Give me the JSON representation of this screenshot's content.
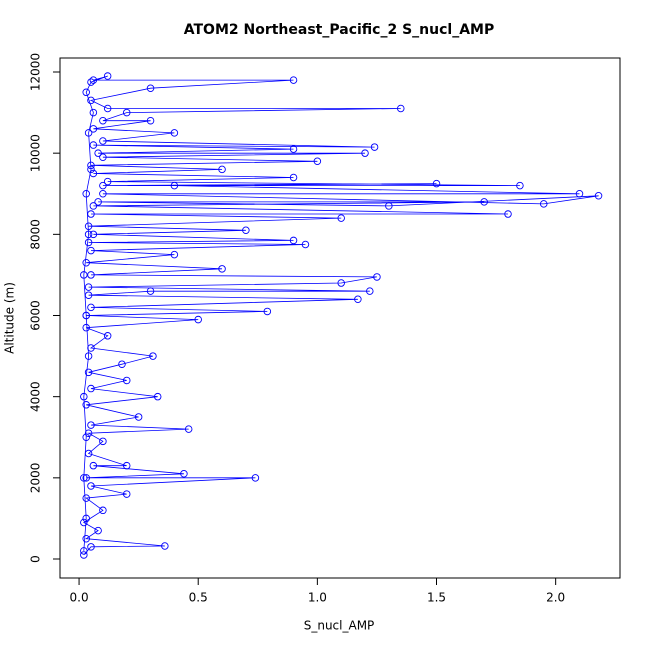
{
  "chart_data": {
    "type": "line",
    "markers": true,
    "title": "ATOM2 Northeast_Pacific_2 S_nucl_AMP",
    "x_label": "S_nucl_AMP",
    "y_label": "Altitude (m)",
    "color": "#0000ff",
    "xlim": [
      -0.08,
      2.27
    ],
    "ylim": [
      -468,
      12345
    ],
    "xticks": [
      {
        "value": 0,
        "label": "0.0"
      },
      0.5,
      {
        "value": 1,
        "label": "1.0"
      },
      1.5,
      {
        "value": 2,
        "label": "2.0"
      }
    ],
    "yticks": [
      0,
      2000,
      4000,
      6000,
      8000,
      10000,
      12000
    ],
    "x": [
      0.02,
      0.05,
      0.36,
      0.03,
      0.08,
      0.02,
      0.1,
      0.03,
      0.2,
      0.05,
      0.74,
      0.03,
      0.44,
      0.06,
      0.2,
      0.04,
      0.1,
      0.04,
      0.46,
      0.05,
      0.25,
      0.03,
      0.33,
      0.05,
      0.2,
      0.04,
      0.18,
      0.31,
      0.05,
      0.12,
      0.03,
      0.5,
      0.03,
      0.79,
      0.05,
      1.17,
      0.04,
      0.3,
      1.22,
      0.04,
      1.1,
      1.25,
      0.05,
      0.6,
      0.03,
      0.4,
      0.05,
      0.95,
      0.04,
      0.9,
      0.06,
      0.7,
      0.04,
      1.1,
      0.05,
      1.8,
      0.06,
      1.7,
      0.08,
      1.3,
      2.18,
      1.95,
      0.1,
      2.1,
      0.4,
      1.5,
      0.1,
      1.85,
      0.12,
      0.9,
      0.06,
      0.6,
      0.05,
      1.0,
      0.1,
      1.2,
      0.08,
      0.9,
      0.06,
      1.24,
      0.1,
      0.4,
      0.06,
      0.3,
      0.1,
      0.2,
      1.35,
      0.12,
      0.05,
      0.3,
      0.9,
      0.06,
      0.12,
      0.05,
      0.03,
      0.06,
      0.04,
      0.05,
      0.03,
      0.04,
      0.02,
      0.03,
      0.04,
      0.02,
      0.03,
      0.02,
      0.03,
      0.02
    ],
    "y": [
      100,
      300,
      320,
      500,
      700,
      900,
      1200,
      1500,
      1600,
      1800,
      2000,
      2000,
      2100,
      2300,
      2300,
      2600,
      2900,
      3100,
      3200,
      3300,
      3500,
      3800,
      4000,
      4200,
      4400,
      4600,
      4800,
      5000,
      5200,
      5500,
      5700,
      5900,
      6000,
      6100,
      6200,
      6400,
      6500,
      6600,
      6600,
      6700,
      6800,
      6950,
      7000,
      7150,
      7300,
      7500,
      7600,
      7750,
      7800,
      7850,
      8000,
      8100,
      8200,
      8400,
      8500,
      8500,
      8700,
      8800,
      8800,
      8700,
      8950,
      8750,
      9000,
      9000,
      9200,
      9250,
      9200,
      9200,
      9300,
      9400,
      9500,
      9600,
      9700,
      9800,
      9900,
      10000,
      10000,
      10100,
      10200,
      10150,
      10300,
      10500,
      10600,
      10800,
      10800,
      11000,
      11100,
      11100,
      11300,
      11600,
      11800,
      11800,
      11900,
      11750,
      11500,
      11000,
      10500,
      9600,
      9000,
      8000,
      7000,
      6000,
      5000,
      4000,
      3000,
      2000,
      1000,
      200
    ]
  }
}
